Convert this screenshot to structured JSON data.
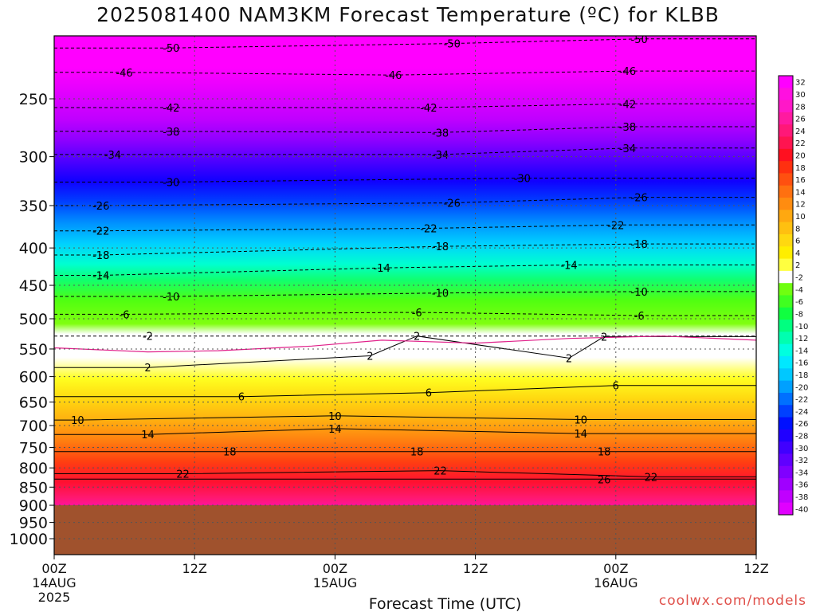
{
  "title": "2025081400 NAM3KM Forecast Temperature (ºC) for KLBB",
  "credit": "coolwx.com/models",
  "chart_data": {
    "type": "heatmap",
    "title": "2025081400 NAM3KM Forecast Temperature (ºC) for KLBB",
    "xlabel": "Forecast Time (UTC)",
    "ylabel": "",
    "x_ticks": [
      {
        "hour": 0,
        "label": "00Z",
        "sub1": "14AUG",
        "sub2": "2025"
      },
      {
        "hour": 12,
        "label": "12Z",
        "sub1": "",
        "sub2": ""
      },
      {
        "hour": 24,
        "label": "00Z",
        "sub1": "15AUG",
        "sub2": ""
      },
      {
        "hour": 36,
        "label": "12Z",
        "sub1": "",
        "sub2": ""
      },
      {
        "hour": 48,
        "label": "00Z",
        "sub1": "16AUG",
        "sub2": ""
      },
      {
        "hour": 60,
        "label": "12Z",
        "sub1": "",
        "sub2": ""
      }
    ],
    "xlim": [
      0,
      60
    ],
    "y_ticks": [
      250,
      300,
      350,
      400,
      450,
      500,
      550,
      600,
      650,
      700,
      750,
      800,
      850,
      900,
      950,
      1000
    ],
    "ylim": [
      200,
      1040
    ],
    "y_scale": "log-pressure",
    "surface_pressure": 900,
    "colorbar": {
      "labels": [
        "32",
        "30",
        "28",
        "26",
        "24",
        "22",
        "20",
        "18",
        "16",
        "14",
        "12",
        "10",
        "8",
        "6",
        "4",
        "2",
        "-2",
        "-4",
        "-6",
        "-8",
        "-10",
        "-12",
        "-14",
        "-16",
        "-18",
        "-20",
        "-22",
        "-24",
        "-26",
        "-28",
        "-30",
        "-32",
        "-34",
        "-36",
        "-38",
        "-40"
      ],
      "colors": [
        "#ff00ff",
        "#ff10e0",
        "#ff18c8",
        "#ff1aa0",
        "#ff1878",
        "#ff1450",
        "#ff1020",
        "#ff3010",
        "#ff5010",
        "#ff7010",
        "#ff8c10",
        "#ffa810",
        "#ffc010",
        "#ffd810",
        "#ffee00",
        "#ffff40",
        "#ffffff",
        "#70ff10",
        "#40ff20",
        "#10ff40",
        "#00ff80",
        "#00ffb0",
        "#00ffe0",
        "#00e8ff",
        "#00c8ff",
        "#00a0ff",
        "#0070ff",
        "#0040ff",
        "#0010ff",
        "#2000ff",
        "#4000ff",
        "#6000ff",
        "#8000ff",
        "#a000ff",
        "#c000ff",
        "#e000ff"
      ]
    },
    "contour_labels": [
      {
        "text": "-50",
        "hour": 10,
        "p": 213
      },
      {
        "text": "-50",
        "hour": 34,
        "p": 210
      },
      {
        "text": "-50",
        "hour": 50,
        "p": 207
      },
      {
        "text": "-46",
        "hour": 6,
        "p": 230
      },
      {
        "text": "-46",
        "hour": 29,
        "p": 232
      },
      {
        "text": "-46",
        "hour": 49,
        "p": 229
      },
      {
        "text": "-42",
        "hour": 10,
        "p": 257
      },
      {
        "text": "-42",
        "hour": 32,
        "p": 257
      },
      {
        "text": "-42",
        "hour": 49,
        "p": 254
      },
      {
        "text": "-38",
        "hour": 10,
        "p": 277
      },
      {
        "text": "-38",
        "hour": 33,
        "p": 278
      },
      {
        "text": "-38",
        "hour": 49,
        "p": 273
      },
      {
        "text": "-34",
        "hour": 5,
        "p": 298
      },
      {
        "text": "-34",
        "hour": 33,
        "p": 298
      },
      {
        "text": "-34",
        "hour": 49,
        "p": 292
      },
      {
        "text": "-30",
        "hour": 10,
        "p": 325
      },
      {
        "text": "-30",
        "hour": 40,
        "p": 321
      },
      {
        "text": "-26",
        "hour": 4,
        "p": 350
      },
      {
        "text": "-26",
        "hour": 34,
        "p": 347
      },
      {
        "text": "-26",
        "hour": 50,
        "p": 341
      },
      {
        "text": "-22",
        "hour": 4,
        "p": 379
      },
      {
        "text": "-22",
        "hour": 32,
        "p": 376
      },
      {
        "text": "-22",
        "hour": 48,
        "p": 372
      },
      {
        "text": "-18",
        "hour": 4,
        "p": 409
      },
      {
        "text": "-18",
        "hour": 33,
        "p": 398
      },
      {
        "text": "-18",
        "hour": 50,
        "p": 395
      },
      {
        "text": "-14",
        "hour": 4,
        "p": 436
      },
      {
        "text": "-14",
        "hour": 28,
        "p": 426
      },
      {
        "text": "-14",
        "hour": 44,
        "p": 422
      },
      {
        "text": "-10",
        "hour": 10,
        "p": 466
      },
      {
        "text": "-10",
        "hour": 33,
        "p": 461
      },
      {
        "text": "-10",
        "hour": 50,
        "p": 459
      },
      {
        "text": "-6",
        "hour": 6,
        "p": 493
      },
      {
        "text": "-6",
        "hour": 31,
        "p": 490
      },
      {
        "text": "-6",
        "hour": 50,
        "p": 495
      },
      {
        "text": "-2",
        "hour": 8,
        "p": 528
      },
      {
        "text": "2",
        "hour": 31,
        "p": 528
      },
      {
        "text": "2",
        "hour": 47,
        "p": 529
      },
      {
        "text": "2",
        "hour": 27,
        "p": 562
      },
      {
        "text": "2",
        "hour": 8,
        "p": 583
      },
      {
        "text": "2",
        "hour": 44,
        "p": 566
      },
      {
        "text": "6",
        "hour": 16,
        "p": 639
      },
      {
        "text": "6",
        "hour": 32,
        "p": 631
      },
      {
        "text": "6",
        "hour": 48,
        "p": 617
      },
      {
        "text": "10",
        "hour": 2,
        "p": 688
      },
      {
        "text": "10",
        "hour": 24,
        "p": 679
      },
      {
        "text": "10",
        "hour": 45,
        "p": 687
      },
      {
        "text": "14",
        "hour": 8,
        "p": 720
      },
      {
        "text": "14",
        "hour": 24,
        "p": 707
      },
      {
        "text": "14",
        "hour": 45,
        "p": 718
      },
      {
        "text": "18",
        "hour": 15,
        "p": 760
      },
      {
        "text": "18",
        "hour": 31,
        "p": 760
      },
      {
        "text": "18",
        "hour": 47,
        "p": 760
      },
      {
        "text": "22",
        "hour": 11,
        "p": 815
      },
      {
        "text": "22",
        "hour": 33,
        "p": 807
      },
      {
        "text": "22",
        "hour": 51,
        "p": 823
      },
      {
        "text": "26",
        "hour": 47,
        "p": 829
      }
    ]
  }
}
